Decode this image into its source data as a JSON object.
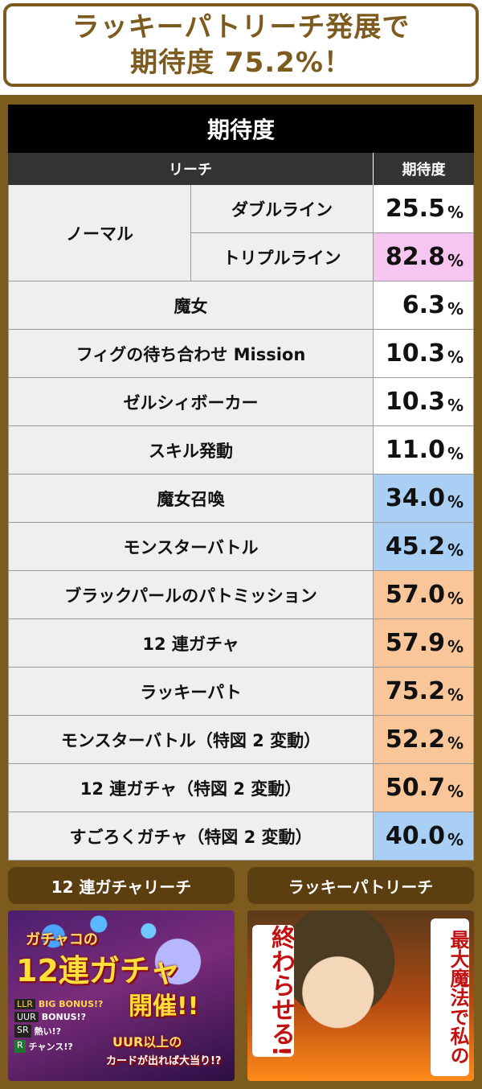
{
  "headline": {
    "line1": "ラッキーパトリーチ発展で",
    "line2": "期待度 75.2%！"
  },
  "table": {
    "title": "期待度",
    "header_reach": "リーチ",
    "header_expect": "期待度",
    "group_normal": "ノーマル",
    "rows": [
      {
        "name": "ダブルライン",
        "value": "25.5",
        "color": "#ffffff"
      },
      {
        "name": "トリプルライン",
        "value": "82.8",
        "color": "#f7c6f0"
      },
      {
        "name": "魔女",
        "value": "6.3",
        "color": "#ffffff"
      },
      {
        "name": "フィグの待ち合わせ Mission",
        "value": "10.3",
        "color": "#ffffff"
      },
      {
        "name": "ゼルシィボーカー",
        "value": "10.3",
        "color": "#ffffff"
      },
      {
        "name": "スキル発動",
        "value": "11.0",
        "color": "#ffffff"
      },
      {
        "name": "魔女召喚",
        "value": "34.0",
        "color": "#a9cff5"
      },
      {
        "name": "モンスターバトル",
        "value": "45.2",
        "color": "#a9cff5"
      },
      {
        "name": "ブラックパールのパトミッション",
        "value": "57.0",
        "color": "#f9c69a"
      },
      {
        "name": "12 連ガチャ",
        "value": "57.9",
        "color": "#f9c69a"
      },
      {
        "name": "ラッキーパト",
        "value": "75.2",
        "color": "#f9c69a"
      },
      {
        "name": "モンスターバトル（特図 2 変動）",
        "value": "52.2",
        "color": "#f9c69a"
      },
      {
        "name": "12 連ガチャ（特図 2 変動）",
        "value": "50.7",
        "color": "#f9c69a"
      },
      {
        "name": "すごろくガチャ（特図 2 変動）",
        "value": "40.0",
        "color": "#a9cff5"
      }
    ],
    "unit": "%"
  },
  "panels": {
    "left_label": "12 連ガチャリーチ",
    "right_label": "ラッキーパトリーチ",
    "left_img": {
      "title_a": "ガチャコの",
      "title_b": "12連ガチャ",
      "title_c": "開催!!",
      "legend": [
        "LLR",
        "UUR",
        "SR",
        "R"
      ],
      "legend_text": [
        "BIG BONUS!?",
        "BONUS!?",
        "熱い!?",
        "チャンス!?"
      ],
      "caption_a": "UUR以上の",
      "caption_b": "カードが出れば大当り!?"
    },
    "right_img": {
      "left_text": "終わらせる!",
      "right_text": "最大魔法で私の"
    }
  }
}
